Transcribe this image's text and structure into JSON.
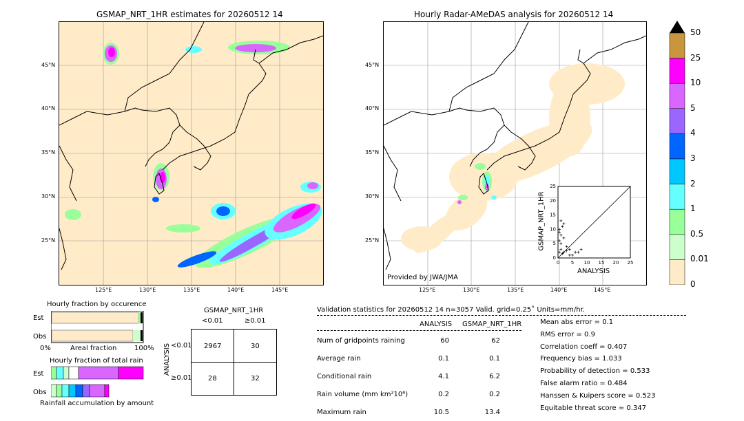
{
  "titles": {
    "left": "GSMAP_NRT_1HR estimates for 20260512 14",
    "right": "Hourly Radar-AMeDAS analysis for 20260512 14"
  },
  "map_ticks": {
    "lat": [
      "45°N",
      "40°N",
      "35°N",
      "30°N",
      "25°N"
    ],
    "lon": [
      "125°E",
      "130°E",
      "135°E",
      "140°E",
      "145°E"
    ]
  },
  "provided_by": "Provided by JWA/JMA",
  "colorbar": {
    "labels": [
      "50",
      "25",
      "10",
      "5",
      "4",
      "3",
      "2",
      "1",
      "0.5",
      "0.01",
      "0"
    ],
    "colors": [
      "#c8963c",
      "#ff00ff",
      "#d966ff",
      "#9966ff",
      "#0066ff",
      "#00c8ff",
      "#66ffff",
      "#99ff99",
      "#ccffcc",
      "#ffebc8"
    ]
  },
  "inset_scatter": {
    "ylabel": "GSMAP_NRT_1HR",
    "xlabel": "ANALYSIS",
    "ticks": [
      "0",
      "5",
      "10",
      "15",
      "20",
      "25"
    ]
  },
  "fraction_occurrence": {
    "title": "Hourly fraction by occurence",
    "rows": [
      "Est",
      "Obs"
    ],
    "axis_left": "0%",
    "axis_mid": "Areal fraction",
    "axis_right": "100%"
  },
  "fraction_rain": {
    "title": "Hourly fraction of total rain",
    "rows": [
      "Est",
      "Obs"
    ],
    "footer": "Rainfall accumulation by amount"
  },
  "contingency": {
    "title": "GSMAP_NRT_1HR",
    "col_lt": "<0.01",
    "col_ge": "≥0.01",
    "row_axis": "ANALYSIS",
    "row_lt": "<0.01",
    "row_ge": "≥0.01",
    "cells": [
      "2967",
      "30",
      "28",
      "32"
    ]
  },
  "validation": {
    "header": "Validation statistics for 20260512 14  n=3057 Valid. grid=0.25˚ Units=mm/hr.",
    "col_analysis": "ANALYSIS",
    "col_gsmap": "GSMAP_NRT_1HR",
    "rows": [
      {
        "label": "Num of gridpoints raining",
        "a": "60",
        "g": "62"
      },
      {
        "label": "Average rain",
        "a": "0.1",
        "g": "0.1"
      },
      {
        "label": "Conditional rain",
        "a": "4.1",
        "g": "6.2"
      },
      {
        "label": "Rain volume (mm km²10⁶)",
        "a": "0.2",
        "g": "0.2"
      },
      {
        "label": "Maximum rain",
        "a": "10.5",
        "g": "13.4"
      }
    ],
    "scores": [
      "Mean abs error =    0.1",
      "RMS error =    0.9",
      "Correlation coeff =  0.407",
      "Frequency bias =  1.033",
      "Probability of detection =  0.533",
      "False alarm ratio =  0.484",
      "Hanssen & Kuipers score =  0.523",
      "Equitable threat score =  0.347"
    ]
  },
  "chart_data": [
    {
      "type": "heatmap",
      "title": "GSMAP_NRT_1HR estimates for 20260512 14",
      "xlabel": "",
      "ylabel": "",
      "xlim": [
        120,
        150
      ],
      "ylim": [
        20,
        50
      ]
    },
    {
      "type": "heatmap",
      "title": "Hourly Radar-AMeDAS analysis for 20260512 14",
      "xlabel": "",
      "ylabel": "",
      "xlim": [
        120,
        150
      ],
      "ylim": [
        20,
        50
      ]
    },
    {
      "type": "scatter",
      "xlabel": "ANALYSIS",
      "ylabel": "GSMAP_NRT_1HR",
      "xlim": [
        0,
        25
      ],
      "ylim": [
        0,
        25
      ],
      "points": [
        [
          0.5,
          10
        ],
        [
          1,
          8
        ],
        [
          1.5,
          11
        ],
        [
          0.5,
          6
        ],
        [
          2,
          7
        ],
        [
          1,
          5
        ],
        [
          3,
          4
        ],
        [
          1,
          3
        ],
        [
          2,
          2
        ],
        [
          0.5,
          2
        ],
        [
          1.5,
          1.5
        ],
        [
          3,
          2.5
        ],
        [
          4,
          3
        ],
        [
          5,
          1
        ],
        [
          6,
          2
        ],
        [
          8,
          3
        ],
        [
          2,
          12
        ],
        [
          1,
          13
        ],
        [
          0.5,
          9
        ],
        [
          4,
          1
        ],
        [
          7,
          2
        ]
      ]
    },
    {
      "type": "bar",
      "title": "Hourly fraction by occurence",
      "categories": [
        "Est",
        "Obs"
      ],
      "series": [
        {
          "values": [
            0.97,
            0.97
          ]
        },
        {
          "values": [
            0.02,
            0.02
          ]
        }
      ]
    },
    {
      "type": "bar",
      "title": "Hourly fraction of total rain",
      "categories": [
        "Est",
        "Obs"
      ]
    },
    {
      "type": "table",
      "title": "GSMAP_NRT_1HR",
      "cells": [
        [
          2967,
          30
        ],
        [
          28,
          32
        ]
      ]
    }
  ]
}
